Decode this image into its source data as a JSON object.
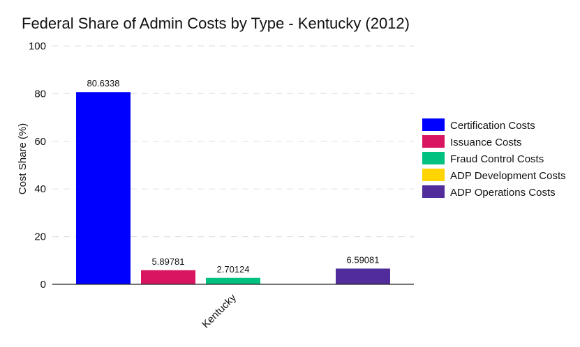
{
  "chart_data": {
    "type": "bar",
    "title": "Federal Share of Admin Costs by Type - Kentucky (2012)",
    "ylabel": "Cost Share (%)",
    "xlabel": "",
    "categories": [
      "Kentucky"
    ],
    "ylim": [
      0,
      100
    ],
    "yticks": [
      0,
      20,
      40,
      60,
      80,
      100
    ],
    "grid": true,
    "legend_position": "right",
    "series": [
      {
        "name": "Certification Costs",
        "color": "#0000ff",
        "values": [
          80.6338
        ],
        "label": "80.6338"
      },
      {
        "name": "Issuance Costs",
        "color": "#d9155f",
        "values": [
          5.89781
        ],
        "label": "5.89781"
      },
      {
        "name": "Fraud Control Costs",
        "color": "#00c17f",
        "values": [
          2.70124
        ],
        "label": "2.70124"
      },
      {
        "name": "ADP Development Costs",
        "color": "#ffd400",
        "values": [
          0
        ],
        "label": ""
      },
      {
        "name": "ADP Operations Costs",
        "color": "#512d9c",
        "values": [
          6.59081
        ],
        "label": "6.59081"
      }
    ]
  }
}
